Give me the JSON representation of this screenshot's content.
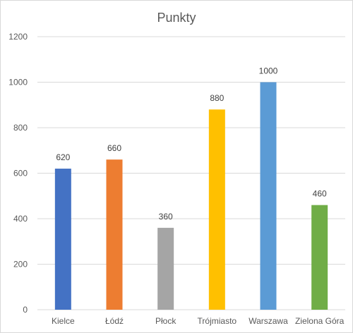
{
  "chart_data": {
    "type": "bar",
    "title": "Punkty",
    "xlabel": "",
    "ylabel": "",
    "categories": [
      "Kielce",
      "Łódź",
      "Płock",
      "Trójmiasto",
      "Warszawa",
      "Zielona Góra"
    ],
    "values": [
      620,
      660,
      360,
      880,
      1000,
      460
    ],
    "data_labels": [
      "620",
      "660",
      "360",
      "880",
      "1000",
      "460"
    ],
    "ylim": [
      0,
      1200
    ],
    "yticks": [
      0,
      200,
      400,
      600,
      800,
      1000,
      1200
    ],
    "colors": [
      "#4472c4",
      "#ed7d31",
      "#a5a5a5",
      "#ffc000",
      "#5b9bd5",
      "#70ad47"
    ],
    "grid": true,
    "legend": "none"
  }
}
